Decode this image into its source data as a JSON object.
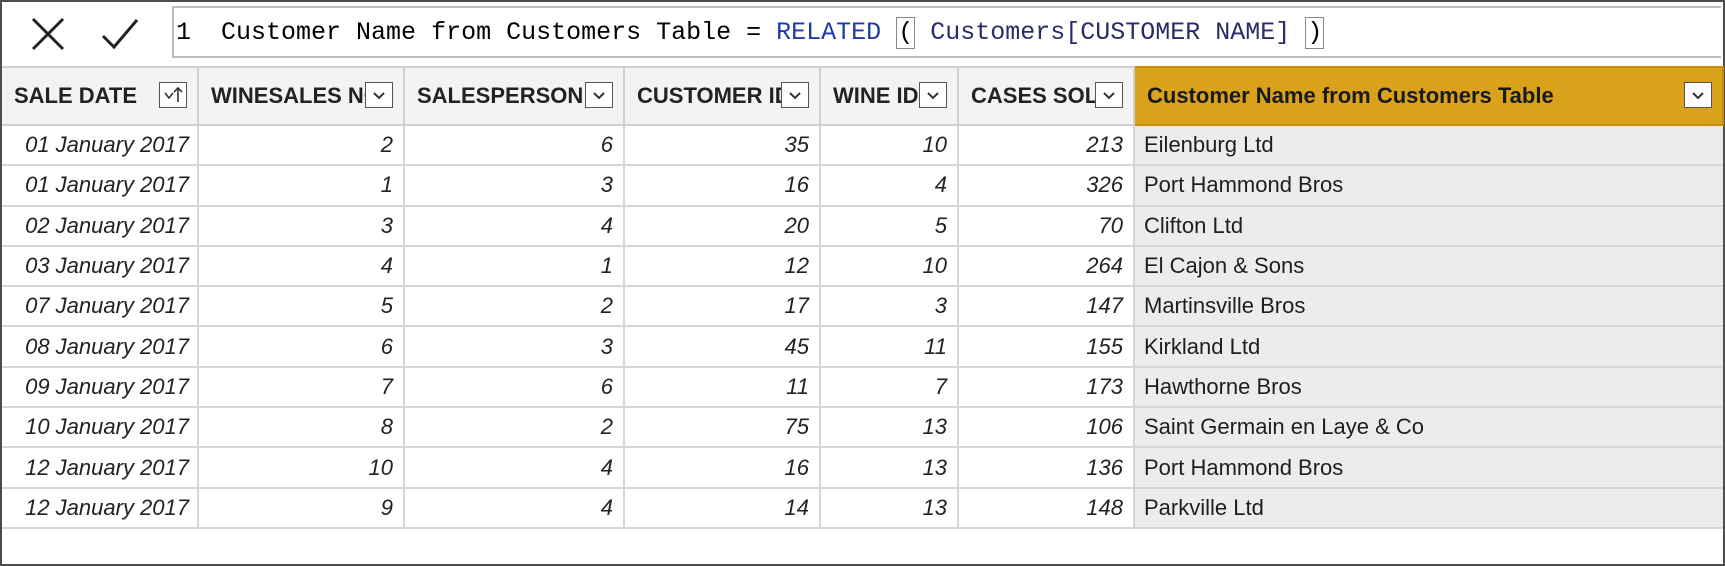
{
  "formula_bar": {
    "cancel_icon": "close-x-icon",
    "commit_icon": "checkmark-icon",
    "line_number": "1",
    "measure_name": "Customer Name from Customers Table",
    "equals": "=",
    "function": "RELATED",
    "open_paren": "(",
    "argument": "Customers[CUSTOMER NAME]",
    "close_paren": ")"
  },
  "table": {
    "columns": [
      {
        "label": "SALE DATE",
        "icon": "sort-ascending-icon"
      },
      {
        "label": "WINESALES NO",
        "icon": "dropdown-arrow-icon"
      },
      {
        "label": "SALESPERSON ID",
        "icon": "dropdown-arrow-icon"
      },
      {
        "label": "CUSTOMER ID",
        "icon": "dropdown-arrow-icon"
      },
      {
        "label": "WINE ID",
        "icon": "dropdown-arrow-icon"
      },
      {
        "label": "CASES SOLD",
        "icon": "dropdown-arrow-icon"
      },
      {
        "label": "Customer Name from Customers Table",
        "icon": "dropdown-arrow-icon"
      }
    ],
    "highlight_color": "#d9a21a",
    "rows": [
      [
        "01 January 2017",
        "2",
        "6",
        "35",
        "10",
        "213",
        "Eilenburg Ltd"
      ],
      [
        "01 January 2017",
        "1",
        "3",
        "16",
        "4",
        "326",
        "Port Hammond Bros"
      ],
      [
        "02 January 2017",
        "3",
        "4",
        "20",
        "5",
        "70",
        "Clifton Ltd"
      ],
      [
        "03 January 2017",
        "4",
        "1",
        "12",
        "10",
        "264",
        "El Cajon & Sons"
      ],
      [
        "07 January 2017",
        "5",
        "2",
        "17",
        "3",
        "147",
        "Martinsville Bros"
      ],
      [
        "08 January 2017",
        "6",
        "3",
        "45",
        "11",
        "155",
        "Kirkland Ltd"
      ],
      [
        "09 January 2017",
        "7",
        "6",
        "11",
        "7",
        "173",
        "Hawthorne Bros"
      ],
      [
        "10 January 2017",
        "8",
        "2",
        "75",
        "13",
        "106",
        "Saint Germain en Laye & Co"
      ],
      [
        "12 January 2017",
        "10",
        "4",
        "16",
        "13",
        "136",
        "Port Hammond Bros"
      ],
      [
        "12 January 2017",
        "9",
        "4",
        "14",
        "13",
        "148",
        "Parkville Ltd"
      ]
    ]
  }
}
